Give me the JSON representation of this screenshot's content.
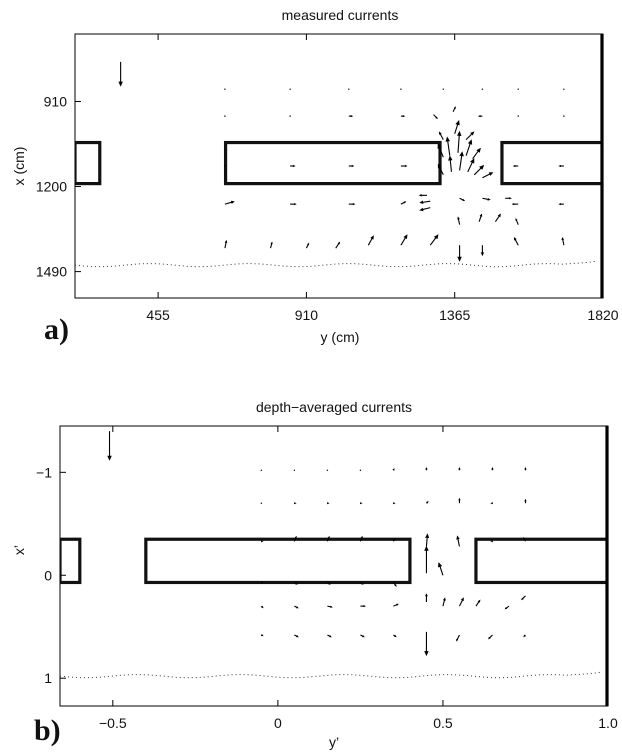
{
  "chart_data": [
    {
      "type": "quiver",
      "panel_label": "a)",
      "title": "measured currents",
      "xlabel": "y (cm)",
      "ylabel": "x (cm)",
      "x_ticks": [
        455,
        910,
        1365,
        1820
      ],
      "y_ticks": [
        910,
        1200,
        1490
      ],
      "xlim": [
        200,
        1820
      ],
      "ylim": [
        680,
        1580
      ],
      "y_inverted": true,
      "grid": false,
      "structures": [
        {
          "name": "left breakwater",
          "y0": 200,
          "y1": 276,
          "x0": 1050,
          "x1": 1190
        },
        {
          "name": "center breakwater",
          "y0": 662,
          "y1": 1320,
          "x0": 1050,
          "x1": 1190
        },
        {
          "name": "right breakwater",
          "y0": 1510,
          "y1": 1820,
          "x0": 1050,
          "x1": 1190
        }
      ],
      "shoreline_x_approx": 1468,
      "reference_arrow": {
        "y": 340,
        "x": 775,
        "u": 0,
        "v": 45
      },
      "vectors": [
        {
          "y": 660,
          "x": 868,
          "u": 0,
          "v": 0
        },
        {
          "y": 860,
          "x": 868,
          "u": 0,
          "v": 0
        },
        {
          "y": 1040,
          "x": 868,
          "u": 0,
          "v": 0
        },
        {
          "y": 1200,
          "x": 868,
          "u": 0,
          "v": 0
        },
        {
          "y": 1330,
          "x": 868,
          "u": 0,
          "v": 0
        },
        {
          "y": 1450,
          "x": 868,
          "u": 0,
          "v": 0
        },
        {
          "y": 1560,
          "x": 868,
          "u": 0,
          "v": 0
        },
        {
          "y": 1700,
          "x": 868,
          "u": 0,
          "v": 0
        },
        {
          "y": 660,
          "x": 960,
          "u": 0,
          "v": 0
        },
        {
          "y": 860,
          "x": 960,
          "u": 0,
          "v": 0
        },
        {
          "y": 1040,
          "x": 960,
          "u": 8,
          "v": 0
        },
        {
          "y": 1200,
          "x": 960,
          "u": 8,
          "v": 0
        },
        {
          "y": 1300,
          "x": 955,
          "u": 8,
          "v": 8
        },
        {
          "y": 1360,
          "x": 945,
          "u": 5,
          "v": -10
        },
        {
          "y": 1450,
          "x": 960,
          "u": -8,
          "v": 0
        },
        {
          "y": 1560,
          "x": 960,
          "u": 0,
          "v": 0
        },
        {
          "y": 1700,
          "x": 960,
          "u": 0,
          "v": 0
        },
        {
          "y": 1330,
          "x": 1040,
          "u": -8,
          "v": -15
        },
        {
          "y": 1365,
          "x": 1020,
          "u": 8,
          "v": -25
        },
        {
          "y": 1400,
          "x": 1040,
          "u": 15,
          "v": -15
        },
        {
          "y": 1330,
          "x": 1100,
          "u": -10,
          "v": -25
        },
        {
          "y": 1350,
          "x": 1095,
          "u": -5,
          "v": -35
        },
        {
          "y": 1375,
          "x": 1085,
          "u": 3,
          "v": -40
        },
        {
          "y": 1400,
          "x": 1095,
          "u": 10,
          "v": -30
        },
        {
          "y": 1420,
          "x": 1105,
          "u": 15,
          "v": -20
        },
        {
          "y": 1330,
          "x": 1160,
          "u": -10,
          "v": -20
        },
        {
          "y": 1355,
          "x": 1150,
          "u": -3,
          "v": -30
        },
        {
          "y": 1380,
          "x": 1145,
          "u": 5,
          "v": -35
        },
        {
          "y": 1405,
          "x": 1150,
          "u": 12,
          "v": -25
        },
        {
          "y": 1425,
          "x": 1160,
          "u": 18,
          "v": -18
        },
        {
          "y": 1450,
          "x": 1170,
          "u": 20,
          "v": -10
        },
        {
          "y": 660,
          "x": 1130,
          "u": 0,
          "v": 0
        },
        {
          "y": 860,
          "x": 1130,
          "u": 10,
          "v": 0
        },
        {
          "y": 1040,
          "x": 1130,
          "u": 10,
          "v": 0
        },
        {
          "y": 1200,
          "x": 1130,
          "u": 12,
          "v": 0
        },
        {
          "y": 1560,
          "x": 1130,
          "u": -10,
          "v": 0
        },
        {
          "y": 1700,
          "x": 1130,
          "u": -10,
          "v": 0
        },
        {
          "y": 660,
          "x": 1260,
          "u": 18,
          "v": -5
        },
        {
          "y": 860,
          "x": 1260,
          "u": 12,
          "v": 0
        },
        {
          "y": 1040,
          "x": 1260,
          "u": 12,
          "v": 0
        },
        {
          "y": 1200,
          "x": 1260,
          "u": 10,
          "v": -5
        },
        {
          "y": 1280,
          "x": 1230,
          "u": -15,
          "v": 0
        },
        {
          "y": 1290,
          "x": 1250,
          "u": -20,
          "v": 3
        },
        {
          "y": 1290,
          "x": 1272,
          "u": -20,
          "v": 5
        },
        {
          "y": 1380,
          "x": 1240,
          "u": 10,
          "v": 5
        },
        {
          "y": 1450,
          "x": 1240,
          "u": 15,
          "v": 3
        },
        {
          "y": 1520,
          "x": 1240,
          "u": 12,
          "v": 0
        },
        {
          "y": 1560,
          "x": 1260,
          "u": -12,
          "v": 0
        },
        {
          "y": 1700,
          "x": 1260,
          "u": -10,
          "v": 0
        },
        {
          "y": 1380,
          "x": 1330,
          "u": -3,
          "v": -15
        },
        {
          "y": 1440,
          "x": 1320,
          "u": 5,
          "v": -15
        },
        {
          "y": 1490,
          "x": 1320,
          "u": 10,
          "v": -15
        },
        {
          "y": 1560,
          "x": 1330,
          "u": -5,
          "v": -12
        },
        {
          "y": 660,
          "x": 1410,
          "u": 3,
          "v": -15
        },
        {
          "y": 800,
          "x": 1410,
          "u": 3,
          "v": -12
        },
        {
          "y": 910,
          "x": 1410,
          "u": 5,
          "v": -10
        },
        {
          "y": 1000,
          "x": 1410,
          "u": 8,
          "v": -12
        },
        {
          "y": 1100,
          "x": 1400,
          "u": 10,
          "v": -18
        },
        {
          "y": 1200,
          "x": 1400,
          "u": 12,
          "v": -20
        },
        {
          "y": 1290,
          "x": 1400,
          "u": 15,
          "v": -20
        },
        {
          "y": 1380,
          "x": 1400,
          "u": 0,
          "v": 30
        },
        {
          "y": 1450,
          "x": 1400,
          "u": 0,
          "v": 20
        },
        {
          "y": 1560,
          "x": 1400,
          "u": -8,
          "v": -15
        },
        {
          "y": 1700,
          "x": 1400,
          "u": -3,
          "v": -15
        }
      ]
    },
    {
      "type": "quiver",
      "panel_label": "b)",
      "title": "depth−averaged currents",
      "xlabel": "y’",
      "ylabel": "x’",
      "x_ticks": [
        -0.5,
        0,
        0.5,
        1.0
      ],
      "x_tick_labels": [
        "−0.5",
        "0",
        "0.5",
        "1.0"
      ],
      "y_ticks": [
        -1,
        0,
        1
      ],
      "y_tick_labels": [
        "−1",
        "0",
        "1"
      ],
      "xlim": [
        -0.66,
        1.0
      ],
      "ylim": [
        -1.45,
        1.27
      ],
      "y_inverted": true,
      "grid": false,
      "structures": [
        {
          "name": "left breakwater",
          "y0": -0.66,
          "y1": -0.6,
          "x0": -0.35,
          "x1": 0.07
        },
        {
          "name": "center breakwater",
          "y0": -0.4,
          "y1": 0.4,
          "x0": -0.35,
          "x1": 0.07
        },
        {
          "name": "right breakwater",
          "y0": 0.6,
          "y1": 1.0,
          "x0": -0.35,
          "x1": 0.07
        }
      ],
      "shoreline_x_approx": 0.98,
      "reference_arrow": {
        "y": -0.51,
        "x": -1.4,
        "u": 0,
        "v": 0.27
      },
      "vectors": [
        {
          "y": -0.05,
          "x": -1.02,
          "u": 0,
          "v": 0
        },
        {
          "y": 0.05,
          "x": -1.02,
          "u": 0,
          "v": 0
        },
        {
          "y": 0.15,
          "x": -1.02,
          "u": 0,
          "v": 0
        },
        {
          "y": 0.25,
          "x": -1.02,
          "u": 0,
          "v": 0
        },
        {
          "y": 0.35,
          "x": -1.02,
          "u": 0.01,
          "v": -0.02
        },
        {
          "y": 0.45,
          "x": -1.02,
          "u": 0,
          "v": -0.03
        },
        {
          "y": 0.55,
          "x": -1.02,
          "u": 0,
          "v": -0.03
        },
        {
          "y": 0.65,
          "x": -1.02,
          "u": 0,
          "v": -0.03
        },
        {
          "y": 0.75,
          "x": -1.02,
          "u": 0,
          "v": -0.03
        },
        {
          "y": -0.05,
          "x": -0.7,
          "u": 0,
          "v": 0
        },
        {
          "y": 0.05,
          "x": -0.7,
          "u": 0.02,
          "v": 0
        },
        {
          "y": 0.15,
          "x": -0.7,
          "u": 0.02,
          "v": 0
        },
        {
          "y": 0.25,
          "x": -0.7,
          "u": 0.02,
          "v": 0
        },
        {
          "y": 0.35,
          "x": -0.7,
          "u": 0.02,
          "v": 0
        },
        {
          "y": 0.45,
          "x": -0.7,
          "u": 0.02,
          "v": -0.02
        },
        {
          "y": 0.55,
          "x": -0.7,
          "u": 0,
          "v": -0.05
        },
        {
          "y": 0.65,
          "x": -0.7,
          "u": -0.02,
          "v": 0
        },
        {
          "y": 0.75,
          "x": -0.7,
          "u": 0,
          "v": -0.04
        },
        {
          "y": -0.05,
          "x": -0.33,
          "u": 0.02,
          "v": 0
        },
        {
          "y": 0.05,
          "x": -0.33,
          "u": 0.02,
          "v": -0.05
        },
        {
          "y": 0.15,
          "x": -0.33,
          "u": 0.02,
          "v": -0.05
        },
        {
          "y": 0.25,
          "x": -0.33,
          "u": 0.02,
          "v": -0.05
        },
        {
          "y": 0.35,
          "x": -0.33,
          "u": 0.02,
          "v": -0.03
        },
        {
          "y": 0.45,
          "x": -0.28,
          "u": 0.01,
          "v": -0.12
        },
        {
          "y": 0.55,
          "x": -0.28,
          "u": -0.02,
          "v": -0.1
        },
        {
          "y": 0.65,
          "x": -0.33,
          "u": -0.02,
          "v": 0
        },
        {
          "y": 0.75,
          "x": -0.33,
          "u": -0.02,
          "v": -0.04
        },
        {
          "y": 0.45,
          "x": -0.02,
          "u": 0,
          "v": -0.25
        },
        {
          "y": 0.5,
          "x": 0.0,
          "u": -0.04,
          "v": -0.12
        },
        {
          "y": -0.05,
          "x": 0.07,
          "u": 0.02,
          "v": 0
        },
        {
          "y": 0.05,
          "x": 0.07,
          "u": 0.03,
          "v": 0.02
        },
        {
          "y": 0.15,
          "x": 0.07,
          "u": 0.03,
          "v": 0.02
        },
        {
          "y": 0.25,
          "x": 0.07,
          "u": 0.03,
          "v": 0.02
        },
        {
          "y": 0.35,
          "x": 0.07,
          "u": 0.03,
          "v": 0.04
        },
        {
          "y": -0.05,
          "x": 0.3,
          "u": 0.02,
          "v": 0.02
        },
        {
          "y": 0.05,
          "x": 0.3,
          "u": 0.04,
          "v": 0.02
        },
        {
          "y": 0.15,
          "x": 0.3,
          "u": 0.05,
          "v": 0.01
        },
        {
          "y": 0.25,
          "x": 0.3,
          "u": 0.05,
          "v": 0
        },
        {
          "y": 0.35,
          "x": 0.3,
          "u": 0.05,
          "v": -0.02
        },
        {
          "y": 0.45,
          "x": 0.26,
          "u": 0,
          "v": -0.08
        },
        {
          "y": 0.5,
          "x": 0.3,
          "u": 0.02,
          "v": -0.08
        },
        {
          "y": 0.55,
          "x": 0.3,
          "u": 0.04,
          "v": -0.08
        },
        {
          "y": 0.6,
          "x": 0.3,
          "u": 0.04,
          "v": -0.06
        },
        {
          "y": 0.7,
          "x": 0.3,
          "u": -0.04,
          "v": 0.03
        },
        {
          "y": 0.75,
          "x": 0.2,
          "u": -0.04,
          "v": 0.04
        },
        {
          "y": -0.05,
          "x": 0.58,
          "u": 0.02,
          "v": 0.01
        },
        {
          "y": 0.05,
          "x": 0.58,
          "u": 0.04,
          "v": 0.02
        },
        {
          "y": 0.15,
          "x": 0.58,
          "u": 0.04,
          "v": 0.02
        },
        {
          "y": 0.25,
          "x": 0.58,
          "u": 0.04,
          "v": 0.02
        },
        {
          "y": 0.35,
          "x": 0.58,
          "u": 0.03,
          "v": 0.02
        },
        {
          "y": 0.45,
          "x": 0.55,
          "u": 0,
          "v": 0.22
        },
        {
          "y": 0.55,
          "x": 0.58,
          "u": -0.03,
          "v": 0.06
        },
        {
          "y": 0.65,
          "x": 0.58,
          "u": -0.04,
          "v": 0.04
        },
        {
          "y": 0.75,
          "x": 0.58,
          "u": -0.02,
          "v": 0.02
        }
      ]
    }
  ]
}
